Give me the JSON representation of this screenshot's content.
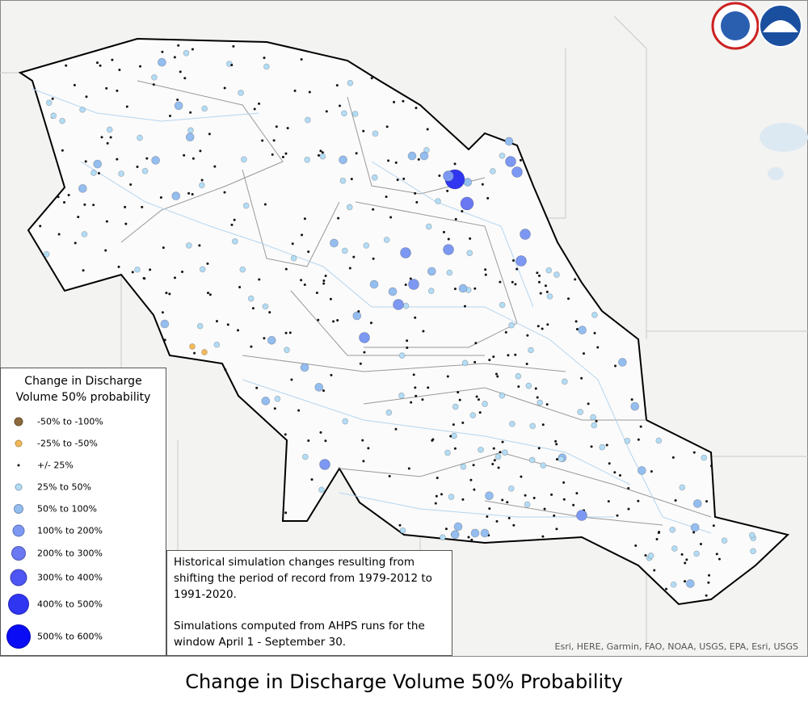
{
  "map": {
    "legend": {
      "title": "Change in Discharge Volume 50% probability",
      "items": [
        {
          "label": "-50% to -100%",
          "color": "#8b6a3e"
        },
        {
          "label": "-25% to -50%",
          "color": "#f2b95c"
        },
        {
          "label": "+/- 25%",
          "color": "#111111"
        },
        {
          "label": "25% to 50%",
          "color": "#b3dcf5"
        },
        {
          "label": "50% to 100%",
          "color": "#94bdf0"
        },
        {
          "label": "100% to 200%",
          "color": "#7c98f2"
        },
        {
          "label": "200% to 300%",
          "color": "#6a78f2"
        },
        {
          "label": "300% to 400%",
          "color": "#4d55f2"
        },
        {
          "label": "400% to 500%",
          "color": "#3035f2"
        },
        {
          "label": "500% to 600%",
          "color": "#0a0cf5"
        }
      ]
    },
    "note": [
      "Historical simulation changes resulting from shifting the period of record from 1979-2012 to 1991-2020.",
      "Simulations computed from AHPS runs for the window April 1 - September 30."
    ],
    "attribution": "Esri, HERE, Garmin, FAO, NOAA, USGS, EPA, Esri, USGS",
    "caption": "Change in Discharge Volume 50% Probability"
  }
}
